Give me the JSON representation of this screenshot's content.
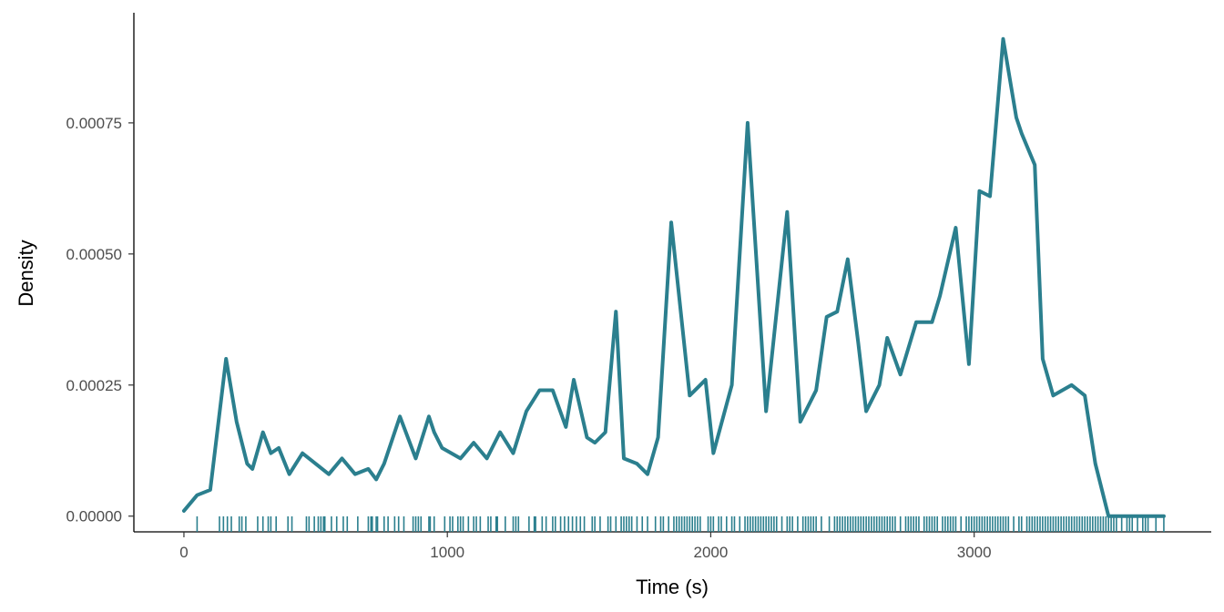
{
  "chart_data": {
    "type": "line",
    "subtype": "density with rug",
    "xlabel": "Time (s)",
    "ylabel": "Density",
    "xlim": [
      -190,
      3900
    ],
    "ylim": [
      -3e-05,
      0.00096
    ],
    "x_ticks": [
      0,
      1000,
      2000,
      3000
    ],
    "x_tick_labels": [
      "0",
      "1000",
      "2000",
      "3000"
    ],
    "y_ticks": [
      0,
      0.00025,
      0.0005,
      0.00075
    ],
    "y_tick_labels": [
      "0.00000",
      "0.00025",
      "0.00050",
      "0.00075"
    ],
    "grid": false,
    "colors": {
      "line": "#2b7f8e",
      "axis": "#000000",
      "tick_text": "#4d4d4d"
    },
    "series": [
      {
        "x": [
          0,
          50,
          100,
          160,
          200,
          240,
          260,
          300,
          330,
          360,
          400,
          450,
          500,
          550,
          600,
          650,
          700,
          730,
          760,
          820,
          880,
          930,
          950,
          980,
          1050,
          1100,
          1150,
          1200,
          1250,
          1300,
          1350,
          1400,
          1450,
          1480,
          1530,
          1560,
          1600,
          1640,
          1670,
          1720,
          1760,
          1800,
          1850,
          1920,
          1980,
          2010,
          2080,
          2140,
          2210,
          2290,
          2340,
          2400,
          2440,
          2480,
          2520,
          2560,
          2590,
          2640,
          2670,
          2720,
          2780,
          2840,
          2870,
          2930,
          2980,
          3020,
          3060,
          3110,
          3160,
          3180,
          3230,
          3260,
          3300,
          3370,
          3420,
          3460,
          3510,
          3560,
          3610,
          3650,
          3690,
          3720
        ],
        "y": [
          1e-05,
          4e-05,
          5e-05,
          0.0003,
          0.00018,
          0.0001,
          9e-05,
          0.00016,
          0.00012,
          0.00013,
          8e-05,
          0.00012,
          0.0001,
          8e-05,
          0.00011,
          8e-05,
          9e-05,
          7e-05,
          0.0001,
          0.00019,
          0.00011,
          0.00019,
          0.00016,
          0.00013,
          0.00011,
          0.00014,
          0.00011,
          0.00016,
          0.00012,
          0.0002,
          0.00024,
          0.00024,
          0.00017,
          0.00026,
          0.00015,
          0.00014,
          0.00016,
          0.00039,
          0.00011,
          0.0001,
          8e-05,
          0.00015,
          0.00056,
          0.00023,
          0.00026,
          0.00012,
          0.00025,
          0.00075,
          0.0002,
          0.00058,
          0.00018,
          0.00024,
          0.00038,
          0.00039,
          0.00049,
          0.00033,
          0.0002,
          0.00025,
          0.00034,
          0.00027,
          0.00037,
          0.00037,
          0.00042,
          0.00055,
          0.00029,
          0.00062,
          0.00061,
          0.00091,
          0.00076,
          0.00073,
          0.00067,
          0.0003,
          0.00023,
          0.00025,
          0.00023,
          0.0001,
          0,
          0,
          0,
          0,
          0,
          0
        ]
      }
    ],
    "rug": [
      50,
      135,
      150,
      165,
      180,
      210,
      220,
      235,
      280,
      300,
      320,
      330,
      350,
      395,
      410,
      465,
      475,
      495,
      510,
      520,
      530,
      535,
      560,
      580,
      605,
      620,
      660,
      700,
      710,
      715,
      730,
      735,
      760,
      775,
      800,
      815,
      835,
      870,
      880,
      890,
      900,
      930,
      935,
      950,
      990,
      1010,
      1020,
      1040,
      1050,
      1060,
      1080,
      1100,
      1110,
      1125,
      1155,
      1165,
      1185,
      1190,
      1220,
      1250,
      1260,
      1270,
      1310,
      1330,
      1335,
      1360,
      1375,
      1400,
      1410,
      1430,
      1445,
      1460,
      1475,
      1490,
      1505,
      1520,
      1550,
      1560,
      1580,
      1610,
      1620,
      1640,
      1660,
      1670,
      1680,
      1690,
      1700,
      1720,
      1740,
      1760,
      1790,
      1810,
      1820,
      1840,
      1860,
      1870,
      1880,
      1890,
      1900,
      1910,
      1920,
      1930,
      1940,
      1950,
      1960,
      1990,
      2000,
      2010,
      2030,
      2040,
      2060,
      2080,
      2090,
      2110,
      2130,
      2140,
      2150,
      2160,
      2170,
      2180,
      2190,
      2200,
      2210,
      2220,
      2230,
      2240,
      2250,
      2270,
      2290,
      2300,
      2310,
      2330,
      2350,
      2360,
      2370,
      2380,
      2390,
      2400,
      2420,
      2450,
      2470,
      2480,
      2490,
      2500,
      2510,
      2520,
      2530,
      2540,
      2550,
      2560,
      2570,
      2580,
      2590,
      2600,
      2610,
      2620,
      2630,
      2640,
      2650,
      2660,
      2670,
      2680,
      2690,
      2700,
      2720,
      2740,
      2750,
      2760,
      2770,
      2780,
      2790,
      2810,
      2820,
      2830,
      2840,
      2850,
      2860,
      2880,
      2890,
      2900,
      2910,
      2920,
      2930,
      2950,
      2970,
      2980,
      2990,
      3000,
      3010,
      3020,
      3030,
      3040,
      3050,
      3060,
      3070,
      3080,
      3090,
      3100,
      3110,
      3120,
      3130,
      3150,
      3170,
      3180,
      3200,
      3210,
      3220,
      3230,
      3240,
      3250,
      3260,
      3270,
      3280,
      3290,
      3300,
      3310,
      3320,
      3330,
      3340,
      3350,
      3360,
      3370,
      3380,
      3390,
      3400,
      3410,
      3420,
      3430,
      3440,
      3450,
      3460,
      3470,
      3480,
      3490,
      3500,
      3510,
      3520,
      3530,
      3540,
      3560,
      3580,
      3590,
      3600,
      3620,
      3640,
      3650,
      3660,
      3690,
      3720
    ]
  }
}
